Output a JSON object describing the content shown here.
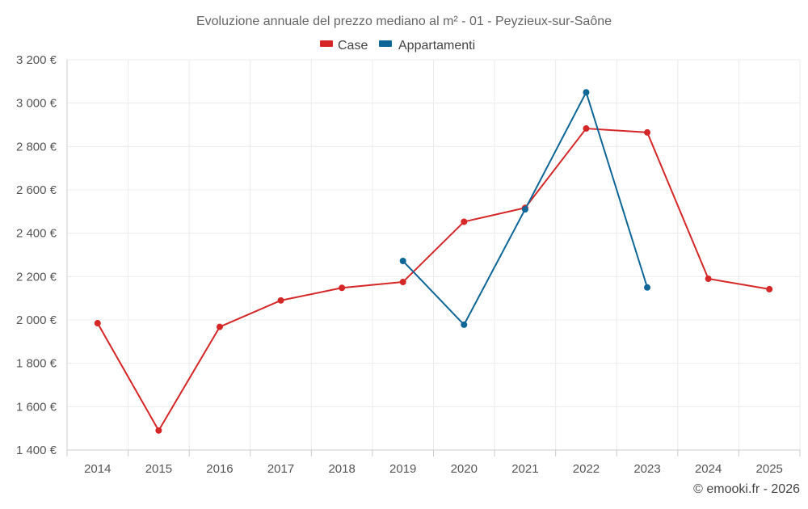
{
  "chart_data": {
    "type": "line",
    "title": "Evoluzione annuale del prezzo mediano al m² - 01 - Peyzieux-sur-Saône",
    "categories": [
      "2014",
      "2015",
      "2016",
      "2017",
      "2018",
      "2019",
      "2020",
      "2021",
      "2022",
      "2023",
      "2024",
      "2025"
    ],
    "y_ticks": [
      1400,
      1600,
      1800,
      2000,
      2200,
      2400,
      2600,
      2800,
      3000,
      3200
    ],
    "y_tick_labels": [
      "1 400 €",
      "1 600 €",
      "1 800 €",
      "2 000 €",
      "2 200 €",
      "2 400 €",
      "2 600 €",
      "2 800 €",
      "3 000 €",
      "3 200 €"
    ],
    "ylim": [
      1400,
      3200
    ],
    "legend_position": "top-center",
    "grid": true,
    "series": [
      {
        "name": "Case",
        "color": "#d62728",
        "values": [
          1985,
          1490,
          1968,
          2090,
          2148,
          2175,
          2453,
          2517,
          2883,
          2865,
          2190,
          2142
        ]
      },
      {
        "name": "Appartamenti",
        "color": "#0e6696",
        "values": [
          null,
          null,
          null,
          null,
          null,
          2272,
          1978,
          2510,
          3050,
          2150,
          null,
          null
        ]
      }
    ]
  },
  "credit": "© emooki.fr - 2026"
}
